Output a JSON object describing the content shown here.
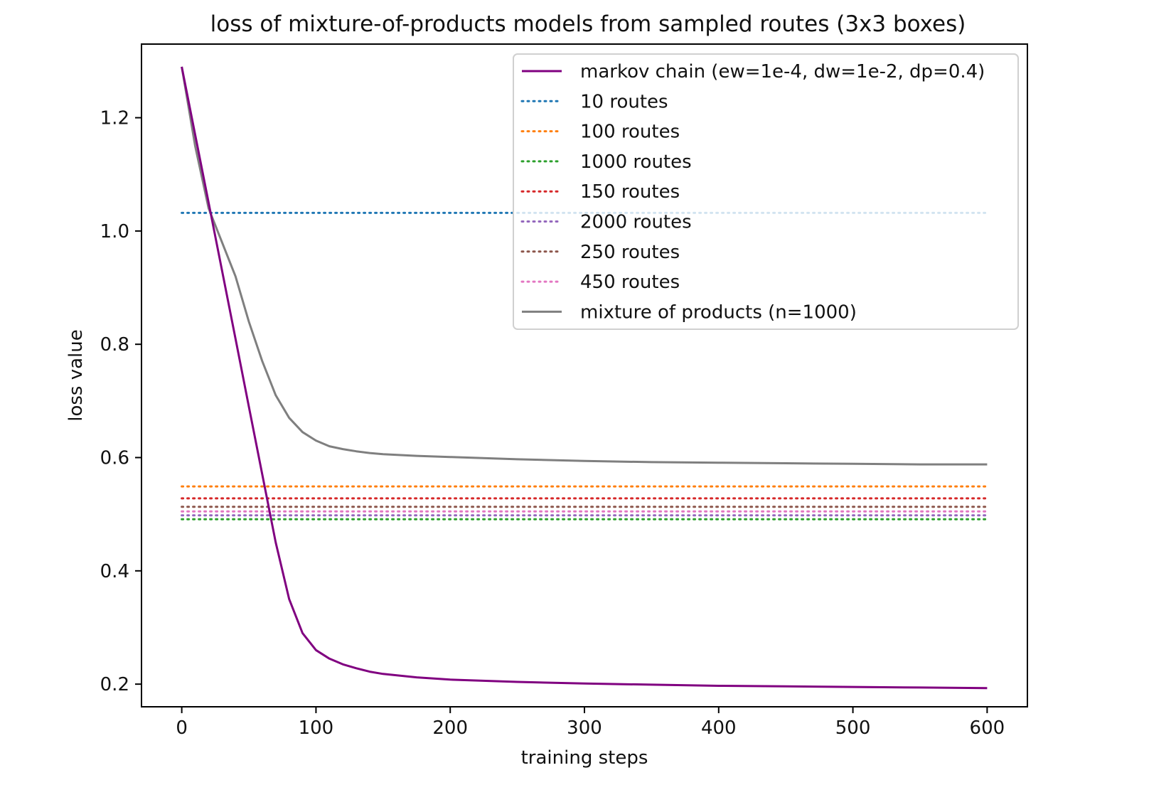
{
  "chart_data": {
    "type": "line",
    "title": "loss of mixture-of-products models from sampled routes (3x3 boxes)",
    "xlabel": "training steps",
    "ylabel": "loss value",
    "xlim": [
      -30,
      630
    ],
    "ylim": [
      0.16,
      1.33
    ],
    "xticks": [
      0,
      100,
      200,
      300,
      400,
      500,
      600
    ],
    "yticks": [
      0.2,
      0.4,
      0.6,
      0.8,
      1.0,
      1.2
    ],
    "ytick_labels": [
      "0.2",
      "0.4",
      "0.6",
      "0.8",
      "1.0",
      "1.2"
    ],
    "grid": false,
    "legend_position": "top-right",
    "series": [
      {
        "name": "markov chain (ew=1e-4, dw=1e-2, dp=0.4)",
        "color": "#800080",
        "style": "solid",
        "x": [
          0,
          10,
          20,
          30,
          40,
          50,
          60,
          70,
          80,
          90,
          100,
          110,
          120,
          130,
          140,
          150,
          175,
          200,
          250,
          300,
          350,
          400,
          450,
          500,
          550,
          600
        ],
        "y": [
          1.29,
          1.17,
          1.05,
          0.93,
          0.81,
          0.69,
          0.57,
          0.45,
          0.35,
          0.29,
          0.26,
          0.245,
          0.235,
          0.228,
          0.222,
          0.218,
          0.212,
          0.208,
          0.204,
          0.201,
          0.199,
          0.197,
          0.196,
          0.195,
          0.194,
          0.193
        ]
      },
      {
        "name": "10 routes",
        "color": "#1f77b4",
        "style": "dotted",
        "x": [
          0,
          600
        ],
        "y": [
          1.032,
          1.032
        ]
      },
      {
        "name": "100 routes",
        "color": "#ff7f0e",
        "style": "dotted",
        "x": [
          0,
          600
        ],
        "y": [
          0.549,
          0.549
        ]
      },
      {
        "name": "1000 routes",
        "color": "#2ca02c",
        "style": "dotted",
        "x": [
          0,
          600
        ],
        "y": [
          0.491,
          0.491
        ]
      },
      {
        "name": "150 routes",
        "color": "#d62728",
        "style": "dotted",
        "x": [
          0,
          600
        ],
        "y": [
          0.528,
          0.528
        ]
      },
      {
        "name": "2000 routes",
        "color": "#9467bd",
        "style": "dotted",
        "x": [
          0,
          600
        ],
        "y": [
          0.498,
          0.498
        ]
      },
      {
        "name": "250 routes",
        "color": "#8c564b",
        "style": "dotted",
        "x": [
          0,
          600
        ],
        "y": [
          0.513,
          0.513
        ]
      },
      {
        "name": "450 routes",
        "color": "#e377c2",
        "style": "dotted",
        "x": [
          0,
          600
        ],
        "y": [
          0.505,
          0.505
        ]
      },
      {
        "name": "mixture of products (n=1000)",
        "color": "#7f7f7f",
        "style": "solid",
        "x": [
          0,
          10,
          20,
          30,
          40,
          50,
          60,
          70,
          80,
          90,
          100,
          110,
          120,
          130,
          140,
          150,
          175,
          200,
          250,
          300,
          350,
          400,
          450,
          500,
          550,
          600
        ],
        "y": [
          1.29,
          1.15,
          1.04,
          0.98,
          0.92,
          0.84,
          0.77,
          0.71,
          0.67,
          0.645,
          0.63,
          0.62,
          0.615,
          0.611,
          0.608,
          0.606,
          0.603,
          0.601,
          0.597,
          0.594,
          0.592,
          0.591,
          0.59,
          0.589,
          0.588,
          0.588
        ]
      }
    ]
  }
}
